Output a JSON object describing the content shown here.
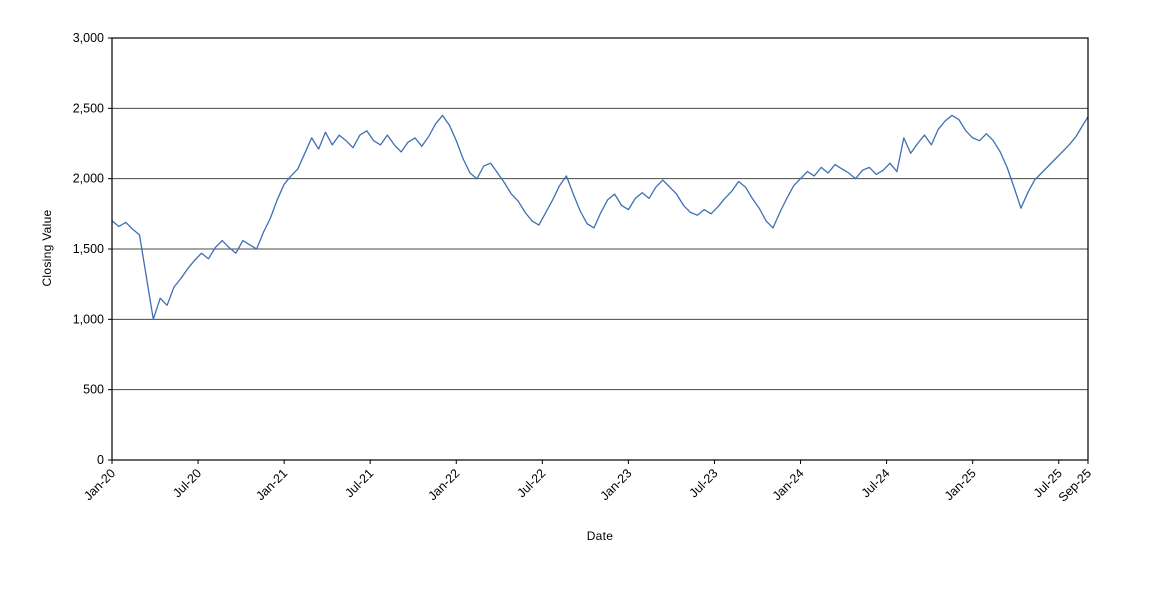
{
  "page": {
    "background": "#ffffff"
  },
  "chart_data": {
    "type": "line",
    "title": "",
    "xlabel": "Date",
    "ylabel": "Closing Value",
    "xlim": [
      2020.0,
      2025.67
    ],
    "ylim": [
      0,
      3000
    ],
    "grid": true,
    "grid_color": "#4a4a4a",
    "axis_color": "#000000",
    "plot_background": "#ffffff",
    "legend": "none",
    "y_ticks": [
      {
        "value": 0,
        "label": "0"
      },
      {
        "value": 500,
        "label": "500"
      },
      {
        "value": 1000,
        "label": "1,000"
      },
      {
        "value": 1500,
        "label": "1,500"
      },
      {
        "value": 2000,
        "label": "2,000"
      },
      {
        "value": 2500,
        "label": "2,500"
      },
      {
        "value": 3000,
        "label": "3,000"
      }
    ],
    "x_ticks": [
      {
        "pos": 2020.0,
        "label": "Jan-20"
      },
      {
        "pos": 2020.5,
        "label": "Jul-20"
      },
      {
        "pos": 2021.0,
        "label": "Jan-21"
      },
      {
        "pos": 2021.5,
        "label": "Jul-21"
      },
      {
        "pos": 2022.0,
        "label": "Jan-22"
      },
      {
        "pos": 2022.5,
        "label": "Jul-22"
      },
      {
        "pos": 2023.0,
        "label": "Jan-23"
      },
      {
        "pos": 2023.5,
        "label": "Jul-23"
      },
      {
        "pos": 2024.0,
        "label": "Jan-24"
      },
      {
        "pos": 2024.5,
        "label": "Jul-24"
      },
      {
        "pos": 2025.0,
        "label": "Jan-25"
      },
      {
        "pos": 2025.5,
        "label": "Jul-25"
      },
      {
        "pos": 2025.67,
        "label": "Sep-25"
      }
    ],
    "series": [
      {
        "name": "Closing Value",
        "color": "#3e6fb4",
        "points": [
          [
            2020.0,
            1700
          ],
          [
            2020.04,
            1660
          ],
          [
            2020.08,
            1690
          ],
          [
            2020.12,
            1640
          ],
          [
            2020.16,
            1600
          ],
          [
            2020.2,
            1300
          ],
          [
            2020.24,
            1000
          ],
          [
            2020.28,
            1150
          ],
          [
            2020.32,
            1100
          ],
          [
            2020.36,
            1230
          ],
          [
            2020.4,
            1290
          ],
          [
            2020.44,
            1360
          ],
          [
            2020.48,
            1420
          ],
          [
            2020.52,
            1470
          ],
          [
            2020.56,
            1430
          ],
          [
            2020.6,
            1510
          ],
          [
            2020.64,
            1560
          ],
          [
            2020.68,
            1510
          ],
          [
            2020.72,
            1470
          ],
          [
            2020.76,
            1560
          ],
          [
            2020.8,
            1530
          ],
          [
            2020.84,
            1500
          ],
          [
            2020.88,
            1620
          ],
          [
            2020.92,
            1720
          ],
          [
            2020.96,
            1850
          ],
          [
            2021.0,
            1960
          ],
          [
            2021.04,
            2020
          ],
          [
            2021.08,
            2070
          ],
          [
            2021.12,
            2180
          ],
          [
            2021.16,
            2290
          ],
          [
            2021.2,
            2210
          ],
          [
            2021.24,
            2330
          ],
          [
            2021.28,
            2240
          ],
          [
            2021.32,
            2310
          ],
          [
            2021.36,
            2270
          ],
          [
            2021.4,
            2220
          ],
          [
            2021.44,
            2310
          ],
          [
            2021.48,
            2340
          ],
          [
            2021.52,
            2270
          ],
          [
            2021.56,
            2240
          ],
          [
            2021.6,
            2310
          ],
          [
            2021.64,
            2240
          ],
          [
            2021.68,
            2190
          ],
          [
            2021.72,
            2260
          ],
          [
            2021.76,
            2290
          ],
          [
            2021.8,
            2230
          ],
          [
            2021.84,
            2300
          ],
          [
            2021.88,
            2390
          ],
          [
            2021.92,
            2450
          ],
          [
            2021.96,
            2380
          ],
          [
            2022.0,
            2270
          ],
          [
            2022.04,
            2140
          ],
          [
            2022.08,
            2040
          ],
          [
            2022.12,
            2000
          ],
          [
            2022.16,
            2090
          ],
          [
            2022.2,
            2110
          ],
          [
            2022.24,
            2040
          ],
          [
            2022.28,
            1970
          ],
          [
            2022.32,
            1890
          ],
          [
            2022.36,
            1840
          ],
          [
            2022.4,
            1760
          ],
          [
            2022.44,
            1700
          ],
          [
            2022.48,
            1670
          ],
          [
            2022.52,
            1760
          ],
          [
            2022.56,
            1850
          ],
          [
            2022.6,
            1950
          ],
          [
            2022.64,
            2020
          ],
          [
            2022.68,
            1890
          ],
          [
            2022.72,
            1770
          ],
          [
            2022.76,
            1680
          ],
          [
            2022.8,
            1650
          ],
          [
            2022.84,
            1760
          ],
          [
            2022.88,
            1850
          ],
          [
            2022.92,
            1890
          ],
          [
            2022.96,
            1810
          ],
          [
            2023.0,
            1780
          ],
          [
            2023.04,
            1860
          ],
          [
            2023.08,
            1900
          ],
          [
            2023.12,
            1860
          ],
          [
            2023.16,
            1940
          ],
          [
            2023.2,
            1990
          ],
          [
            2023.24,
            1940
          ],
          [
            2023.28,
            1890
          ],
          [
            2023.32,
            1810
          ],
          [
            2023.36,
            1760
          ],
          [
            2023.4,
            1740
          ],
          [
            2023.44,
            1780
          ],
          [
            2023.48,
            1750
          ],
          [
            2023.52,
            1800
          ],
          [
            2023.56,
            1860
          ],
          [
            2023.6,
            1910
          ],
          [
            2023.64,
            1980
          ],
          [
            2023.68,
            1940
          ],
          [
            2023.72,
            1860
          ],
          [
            2023.76,
            1790
          ],
          [
            2023.8,
            1700
          ],
          [
            2023.84,
            1650
          ],
          [
            2023.88,
            1760
          ],
          [
            2023.92,
            1860
          ],
          [
            2023.96,
            1950
          ],
          [
            2024.0,
            2000
          ],
          [
            2024.04,
            2050
          ],
          [
            2024.08,
            2020
          ],
          [
            2024.12,
            2080
          ],
          [
            2024.16,
            2040
          ],
          [
            2024.2,
            2100
          ],
          [
            2024.24,
            2070
          ],
          [
            2024.28,
            2040
          ],
          [
            2024.32,
            2000
          ],
          [
            2024.36,
            2060
          ],
          [
            2024.4,
            2080
          ],
          [
            2024.44,
            2030
          ],
          [
            2024.48,
            2060
          ],
          [
            2024.52,
            2110
          ],
          [
            2024.56,
            2050
          ],
          [
            2024.6,
            2290
          ],
          [
            2024.64,
            2180
          ],
          [
            2024.68,
            2250
          ],
          [
            2024.72,
            2310
          ],
          [
            2024.76,
            2240
          ],
          [
            2024.8,
            2350
          ],
          [
            2024.84,
            2410
          ],
          [
            2024.88,
            2450
          ],
          [
            2024.92,
            2420
          ],
          [
            2024.96,
            2340
          ],
          [
            2025.0,
            2290
          ],
          [
            2025.04,
            2270
          ],
          [
            2025.08,
            2320
          ],
          [
            2025.12,
            2270
          ],
          [
            2025.16,
            2190
          ],
          [
            2025.2,
            2080
          ],
          [
            2025.24,
            1940
          ],
          [
            2025.28,
            1790
          ],
          [
            2025.32,
            1900
          ],
          [
            2025.36,
            1990
          ],
          [
            2025.4,
            2040
          ],
          [
            2025.44,
            2090
          ],
          [
            2025.48,
            2140
          ],
          [
            2025.52,
            2190
          ],
          [
            2025.56,
            2240
          ],
          [
            2025.6,
            2300
          ],
          [
            2025.64,
            2380
          ],
          [
            2025.67,
            2440
          ]
        ]
      }
    ]
  }
}
